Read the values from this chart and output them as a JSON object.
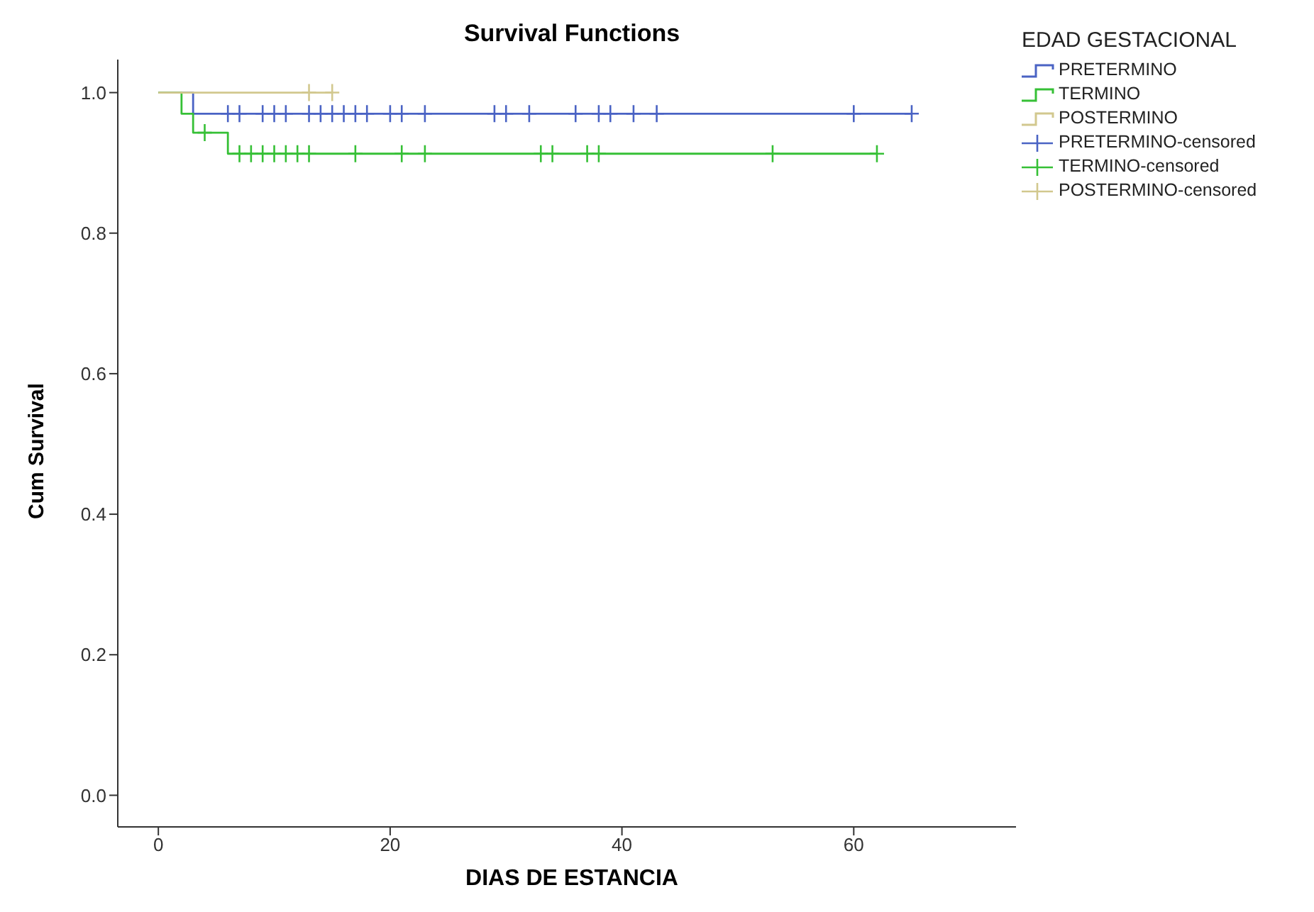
{
  "chart_data": {
    "type": "step",
    "title": "Survival Functions",
    "xlabel": "DIAS DE ESTANCIA",
    "ylabel": "Cum Survival",
    "legend_title": "EDAD GESTACIONAL",
    "legend": "right",
    "xlim": [
      -3.5,
      74
    ],
    "xticks": [
      0,
      20,
      40,
      60
    ],
    "ylim": [
      -0.045,
      1.047
    ],
    "yticks": [
      {
        "value": 0,
        "label": "0.0"
      },
      {
        "value": 0.2,
        "label": "0.2"
      },
      {
        "value": 0.4,
        "label": "0.4"
      },
      {
        "value": 0.6,
        "label": "0.6"
      },
      {
        "value": 0.8,
        "label": "0.8"
      },
      {
        "value": 1,
        "label": "1.0"
      }
    ],
    "grid": false,
    "series": [
      {
        "name": "PRETERMINO",
        "type": "step",
        "color": "#4a63c4",
        "x": [
          0,
          3,
          65
        ],
        "values": [
          1,
          0.97,
          0.97
        ]
      },
      {
        "name": "TERMINO",
        "type": "step",
        "color": "#36c036",
        "x": [
          0,
          2,
          3,
          6,
          62
        ],
        "values": [
          1,
          0.97,
          0.943,
          0.913,
          0.913
        ]
      },
      {
        "name": "POSTERMINO",
        "type": "step",
        "color": "#d2c88e",
        "x": [
          0,
          15
        ],
        "values": [
          1,
          1
        ]
      },
      {
        "name": "PRETERMINO-censored",
        "type": "scatter",
        "marker": "cross",
        "color": "#4a63c4",
        "x": [
          6,
          7,
          9,
          10,
          11,
          13,
          14,
          15,
          16,
          17,
          18,
          20,
          21,
          23,
          29,
          30,
          32,
          36,
          38,
          39,
          41,
          43,
          60,
          65
        ],
        "values": [
          0.97,
          0.97,
          0.97,
          0.97,
          0.97,
          0.97,
          0.97,
          0.97,
          0.97,
          0.97,
          0.97,
          0.97,
          0.97,
          0.97,
          0.97,
          0.97,
          0.97,
          0.97,
          0.97,
          0.97,
          0.97,
          0.97,
          0.97,
          0.97
        ]
      },
      {
        "name": "TERMINO-censored",
        "type": "scatter",
        "marker": "cross",
        "color": "#36c036",
        "x": [
          4,
          7,
          8,
          9,
          10,
          11,
          12,
          13,
          17,
          21,
          23,
          33,
          34,
          37,
          38,
          53,
          62
        ],
        "values": [
          0.943,
          0.913,
          0.913,
          0.913,
          0.913,
          0.913,
          0.913,
          0.913,
          0.913,
          0.913,
          0.913,
          0.913,
          0.913,
          0.913,
          0.913,
          0.913,
          0.913
        ]
      },
      {
        "name": "POSTERMINO-censored",
        "type": "scatter",
        "marker": "cross",
        "color": "#d2c88e",
        "x": [
          13,
          15
        ],
        "values": [
          1,
          1
        ]
      }
    ]
  }
}
